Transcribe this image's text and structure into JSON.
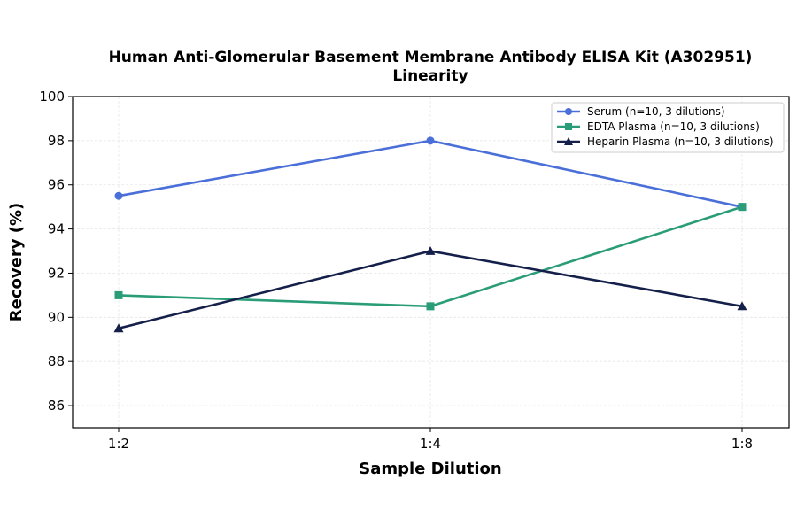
{
  "chart_data": {
    "type": "line",
    "title": "Human Anti-Glomerular Basement Membrane Antibody ELISA Kit (A302951)",
    "subtitle": "Linearity",
    "xlabel": "Sample Dilution",
    "ylabel": "Recovery (%)",
    "categories": [
      "1:2",
      "1:4",
      "1:8"
    ],
    "ylim": [
      85,
      100
    ],
    "yticks": [
      86,
      88,
      90,
      92,
      94,
      96,
      98,
      100
    ],
    "grid": true,
    "legend_position": "top-right",
    "series": [
      {
        "name": "Serum (n=10, 3 dilutions)",
        "values": [
          95.5,
          98.0,
          95.0
        ],
        "color": "#4a6fd8",
        "marker": "circle"
      },
      {
        "name": "EDTA Plasma (n=10, 3 dilutions)",
        "values": [
          91.0,
          90.5,
          95.0
        ],
        "color": "#2a9d78",
        "marker": "square"
      },
      {
        "name": "Heparin Plasma (n=10, 3 dilutions)",
        "values": [
          89.5,
          93.0,
          90.5
        ],
        "color": "#141f4a",
        "marker": "triangle"
      }
    ]
  }
}
